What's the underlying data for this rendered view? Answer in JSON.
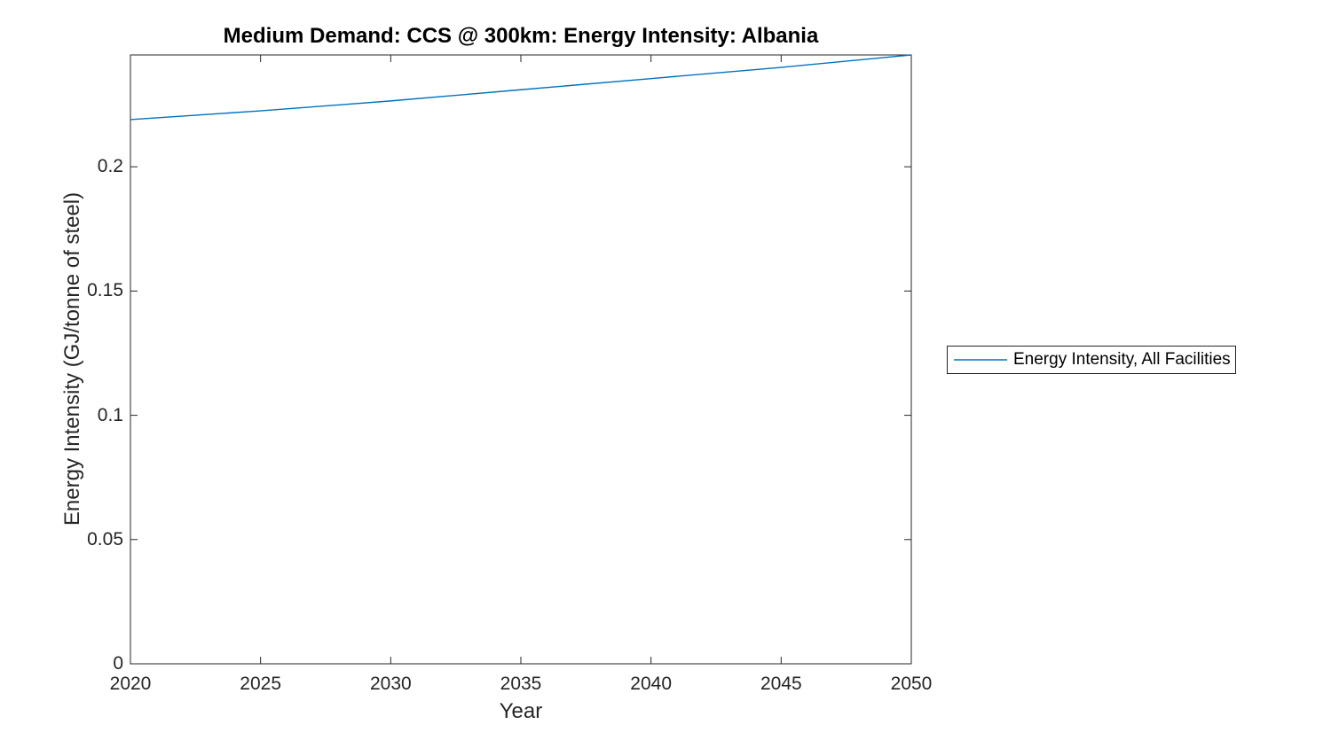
{
  "figure": {
    "title": "Medium Demand: CCS @ 300km: Energy Intensity: Albania",
    "xlabel": "Year",
    "ylabel": "Energy Intensity (GJ/tonne of steel)"
  },
  "legend": {
    "items": [
      {
        "label": "Energy Intensity, All Facilities",
        "color": "#0072BD"
      }
    ]
  },
  "colors": {
    "line": "#0072BD",
    "axis": "#262626",
    "tick_text": "#262626",
    "title_text": "#000000",
    "legend_border": "#262626",
    "background": "#FFFFFF"
  },
  "chart_data": {
    "type": "line",
    "title": "Medium Demand: CCS @ 300km: Energy Intensity: Albania",
    "xlabel": "Year",
    "ylabel": "Energy Intensity (GJ/tonne of steel)",
    "series": [
      {
        "name": "Energy Intensity, All Facilities",
        "color": "#0072BD",
        "x": [
          2020,
          2025,
          2030,
          2035,
          2040,
          2045,
          2050
        ],
        "y": [
          0.219,
          0.2225,
          0.2265,
          0.231,
          0.2355,
          0.24,
          0.245
        ]
      }
    ],
    "xlim": [
      2020,
      2050
    ],
    "ylim": [
      0,
      0.245
    ],
    "xticks": [
      2020,
      2025,
      2030,
      2035,
      2040,
      2045,
      2050
    ],
    "xtick_labels": [
      "2020",
      "2025",
      "2030",
      "2035",
      "2040",
      "2045",
      "2050"
    ],
    "yticks": [
      0,
      0.05,
      0.1,
      0.15,
      0.2
    ],
    "ytick_labels": [
      "0",
      "0.05",
      "0.1",
      "0.15",
      "0.2"
    ],
    "grid": false,
    "box": true,
    "tick_direction": "in",
    "legend_position": "right-outside"
  }
}
